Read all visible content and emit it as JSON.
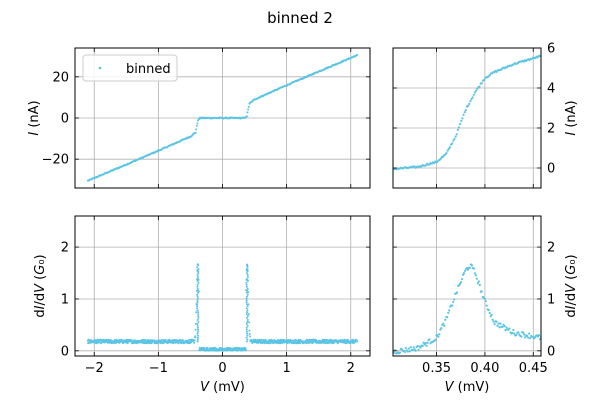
{
  "chart_data": {
    "type": "scatter",
    "title": "binned 2",
    "color": "#5bc4e4",
    "grid": true,
    "panels": [
      {
        "id": "iv-full",
        "xlim": [
          -2.3,
          2.3
        ],
        "ylim": [
          -34,
          34
        ],
        "xticks": [],
        "yticks": [
          {
            "v": -20,
            "label": "−20"
          },
          {
            "v": 0,
            "label": "0"
          },
          {
            "v": 20,
            "label": "20"
          }
        ],
        "ylabel": "I (nA)",
        "ytick_side": "left",
        "legend": {
          "label": "binned",
          "position": "upper-left"
        },
        "series": [
          {
            "name": "binned",
            "kind": "iv",
            "x": [
              -2.1,
              -1.5,
              -1.0,
              -0.5,
              -0.42,
              -0.4,
              -0.38,
              -0.35,
              -0.3,
              0.0,
              0.3,
              0.35,
              0.38,
              0.4,
              0.42,
              0.5,
              1.0,
              1.5,
              2.1
            ],
            "y": [
              -30.5,
              -22.6,
              -15.9,
              -9.0,
              -7.0,
              -4.0,
              -1.0,
              0,
              0,
              0,
              0,
              0,
              1.0,
              4.0,
              7.0,
              9.0,
              15.9,
              22.6,
              30.5
            ]
          }
        ]
      },
      {
        "id": "iv-zoom",
        "xlim": [
          0.305,
          0.458
        ],
        "ylim": [
          -1,
          6
        ],
        "xticks": [],
        "yticks": [
          {
            "v": 0,
            "label": "0"
          },
          {
            "v": 2,
            "label": "2"
          },
          {
            "v": 4,
            "label": "4"
          },
          {
            "v": 6,
            "label": "6"
          }
        ],
        "xgrid": [
          0.35,
          0.4,
          0.45
        ],
        "ylabel": "I (nA)",
        "ytick_side": "right",
        "series": [
          {
            "name": "binned",
            "kind": "iv-zoom",
            "x": [
              0.305,
              0.33,
              0.35,
              0.36,
              0.37,
              0.38,
              0.39,
              0.4,
              0.41,
              0.43,
              0.458
            ],
            "y": [
              -0.05,
              0.05,
              0.3,
              0.7,
              1.6,
              2.9,
              3.8,
              4.5,
              4.8,
              5.2,
              5.6
            ]
          }
        ]
      },
      {
        "id": "didv-full",
        "xlim": [
          -2.3,
          2.3
        ],
        "ylim": [
          -0.1,
          2.6
        ],
        "xticks": [
          {
            "v": -2,
            "label": "−2"
          },
          {
            "v": -1,
            "label": "−1"
          },
          {
            "v": 0,
            "label": "0"
          },
          {
            "v": 1,
            "label": "1"
          },
          {
            "v": 2,
            "label": "2"
          }
        ],
        "yticks": [
          {
            "v": 0,
            "label": "0"
          },
          {
            "v": 1,
            "label": "1"
          },
          {
            "v": 2,
            "label": "2"
          }
        ],
        "xlabel": "V (mV)",
        "ylabel": "dI/dV (G₀)",
        "ytick_side": "left",
        "series": [
          {
            "name": "binned",
            "kind": "didv",
            "background": 0.18,
            "gap_level": 0.02,
            "peaks": [
              {
                "x": -0.385,
                "y": 1.65
              },
              {
                "x": 0.385,
                "y": 1.65
              }
            ]
          }
        ]
      },
      {
        "id": "didv-zoom",
        "xlim": [
          0.305,
          0.458
        ],
        "ylim": [
          -0.1,
          2.6
        ],
        "xticks": [
          {
            "v": 0.35,
            "label": "0.35"
          },
          {
            "v": 0.4,
            "label": "0.40"
          },
          {
            "v": 0.45,
            "label": "0.45"
          }
        ],
        "yticks": [
          {
            "v": 0,
            "label": "0"
          },
          {
            "v": 1,
            "label": "1"
          },
          {
            "v": 2,
            "label": "2"
          }
        ],
        "xlabel": "V (mV)",
        "ylabel": "dI/dV (G₀)",
        "ytick_side": "right",
        "series": [
          {
            "name": "binned",
            "kind": "didv-zoom",
            "x": [
              0.305,
              0.33,
              0.35,
              0.36,
              0.37,
              0.38,
              0.385,
              0.39,
              0.4,
              0.41,
              0.43,
              0.458
            ],
            "y": [
              -0.02,
              0.05,
              0.25,
              0.6,
              1.1,
              1.55,
              1.65,
              1.5,
              0.95,
              0.55,
              0.35,
              0.25
            ]
          }
        ]
      }
    ]
  }
}
